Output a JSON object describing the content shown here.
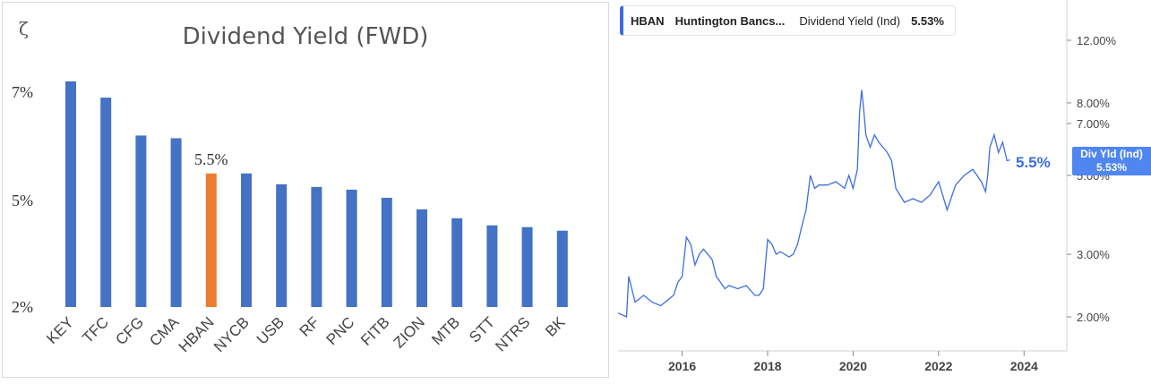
{
  "left_chart": {
    "corner_glyph": "ζ",
    "chart_data": {
      "type": "bar",
      "title": "Dividend Yield (FWD)",
      "categories": [
        "KEY",
        "TFC",
        "CFG",
        "CMA",
        "HBAN",
        "NYCB",
        "USB",
        "RF",
        "PNC",
        "FITB",
        "ZION",
        "MTB",
        "STT",
        "NTRS",
        "BK"
      ],
      "values": [
        7.2,
        6.9,
        6.2,
        6.15,
        5.5,
        5.5,
        5.3,
        5.25,
        5.2,
        5.05,
        4.75,
        4.5,
        4.3,
        4.25,
        4.15
      ],
      "highlight_index": 4,
      "data_label": "5.5%",
      "y_ticks": [
        {
          "value": 7,
          "label": "7%"
        },
        {
          "value": 5,
          "label": "5%"
        },
        {
          "value": 2,
          "label": "2%"
        }
      ],
      "colors": {
        "bar": "#4472c4",
        "highlight": "#ed7d31"
      }
    }
  },
  "right_chart": {
    "tooltip": {
      "ticker": "HBAN",
      "company": "Huntington Bancs...",
      "metric": "Dividend Yield (Ind)",
      "value": "5.53%"
    },
    "badge": {
      "line1": "Div Yld (Ind)",
      "line2": "5.53%"
    },
    "end_label": "5.5%",
    "chart_data": {
      "type": "line",
      "series": [
        {
          "x": [
            2014.5,
            2014.7,
            2014.75,
            2014.9,
            2015.1,
            2015.3,
            2015.5,
            2015.7,
            2015.8,
            2015.9,
            2016.0,
            2016.1,
            2016.2,
            2016.3,
            2016.4,
            2016.5,
            2016.6,
            2016.7,
            2016.8,
            2016.9,
            2017.0,
            2017.1,
            2017.3,
            2017.5,
            2017.7,
            2017.8,
            2017.9,
            2018.0,
            2018.1,
            2018.2,
            2018.3,
            2018.5,
            2018.6,
            2018.7,
            2018.8,
            2018.9,
            2019.0,
            2019.1,
            2019.2,
            2019.4,
            2019.6,
            2019.8,
            2019.9,
            2020.0,
            2020.1,
            2020.15,
            2020.2,
            2020.25,
            2020.3,
            2020.4,
            2020.5,
            2020.6,
            2020.7,
            2020.8,
            2020.9,
            2021.0,
            2021.2,
            2021.4,
            2021.6,
            2021.8,
            2022.0,
            2022.2,
            2022.4,
            2022.6,
            2022.8,
            2023.0,
            2023.1,
            2023.15,
            2023.2,
            2023.3,
            2023.4,
            2023.5,
            2023.6,
            2023.67
          ],
          "y": [
            2.05,
            2.0,
            2.6,
            2.2,
            2.3,
            2.2,
            2.15,
            2.25,
            2.3,
            2.5,
            2.6,
            3.35,
            3.2,
            2.8,
            3.0,
            3.1,
            3.0,
            2.9,
            2.6,
            2.5,
            2.4,
            2.45,
            2.4,
            2.45,
            2.3,
            2.3,
            2.4,
            3.3,
            3.2,
            3.0,
            3.05,
            2.95,
            3.0,
            3.2,
            3.6,
            4.0,
            5.0,
            4.6,
            4.7,
            4.7,
            4.8,
            4.6,
            5.0,
            4.6,
            5.2,
            7.5,
            8.7,
            7.6,
            6.5,
            6.0,
            6.5,
            6.2,
            6.0,
            5.8,
            5.5,
            4.6,
            4.2,
            4.3,
            4.2,
            4.4,
            4.8,
            4.0,
            4.7,
            5.0,
            5.2,
            4.8,
            4.5,
            5.0,
            6.0,
            6.5,
            5.8,
            6.2,
            5.5,
            5.53
          ]
        }
      ],
      "x_ticks": [
        "2016",
        "2018",
        "2020",
        "2022",
        "2024"
      ],
      "y_ticks": [
        "12.00%",
        "8.00%",
        "7.00%",
        "5.00%",
        "3.00%",
        "2.00%"
      ],
      "y_scale": "log",
      "xlim": [
        2014.5,
        2025.0
      ],
      "color": "#3b6fe0"
    }
  }
}
